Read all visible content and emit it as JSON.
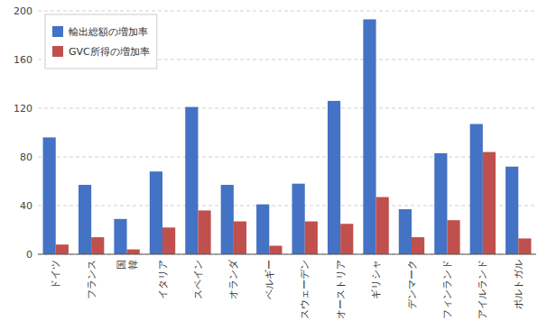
{
  "chart_data": {
    "type": "bar",
    "categories": [
      "ドイツ",
      "フランス",
      "国\n韓",
      "イタリア",
      "スペイン",
      "オランダ",
      "ベルギー",
      "スウェーデン",
      "オーストリア",
      "ギリシャ",
      "デンマーク",
      "フィンランド",
      "アイルランド",
      "ポルトガル"
    ],
    "series": [
      {
        "name": "輸出総額の増加率",
        "color": "#4472C4",
        "values": [
          96,
          57,
          29,
          68,
          121,
          57,
          41,
          58,
          126,
          193,
          37,
          83,
          107,
          72
        ]
      },
      {
        "name": "GVC所得の増加率",
        "color": "#C0504D",
        "values": [
          8,
          14,
          4,
          22,
          36,
          27,
          7,
          27,
          25,
          47,
          14,
          28,
          84,
          13
        ]
      }
    ],
    "ylim": [
      0,
      200
    ],
    "yticks": [
      0,
      40,
      80,
      120,
      160,
      200
    ],
    "grid": true,
    "legend": "upper left"
  }
}
